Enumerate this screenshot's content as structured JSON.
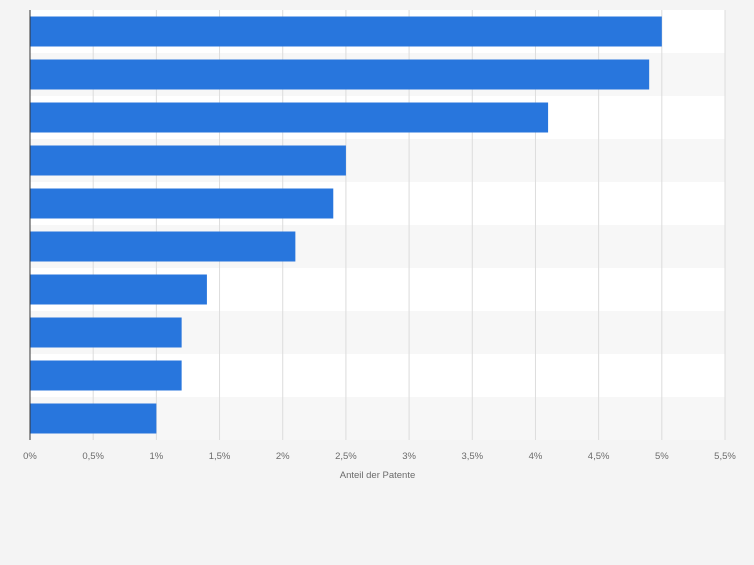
{
  "chart_data": {
    "type": "bar",
    "orientation": "horizontal",
    "categories": [
      "",
      "",
      "",
      "",
      "",
      "",
      "",
      "",
      "",
      ""
    ],
    "values": [
      5.0,
      4.9,
      4.1,
      2.5,
      2.4,
      2.1,
      1.4,
      1.2,
      1.2,
      1.0
    ],
    "xlabel": "Anteil der Patente",
    "xlim": [
      0,
      5.5
    ],
    "ticks": [
      {
        "value": 0,
        "label": "0%"
      },
      {
        "value": 0.5,
        "label": "0,5%"
      },
      {
        "value": 1,
        "label": "1%"
      },
      {
        "value": 1.5,
        "label": "1,5%"
      },
      {
        "value": 2,
        "label": "2%"
      },
      {
        "value": 2.5,
        "label": "2,5%"
      },
      {
        "value": 3,
        "label": "3%"
      },
      {
        "value": 3.5,
        "label": "3,5%"
      },
      {
        "value": 4,
        "label": "4%"
      },
      {
        "value": 4.5,
        "label": "4,5%"
      },
      {
        "value": 5,
        "label": "5%"
      },
      {
        "value": 5.5,
        "label": "5,5%"
      }
    ],
    "grid": true,
    "bar_color": "#2876dd",
    "band_colors": [
      "#ffffff",
      "#f7f7f7"
    ]
  }
}
